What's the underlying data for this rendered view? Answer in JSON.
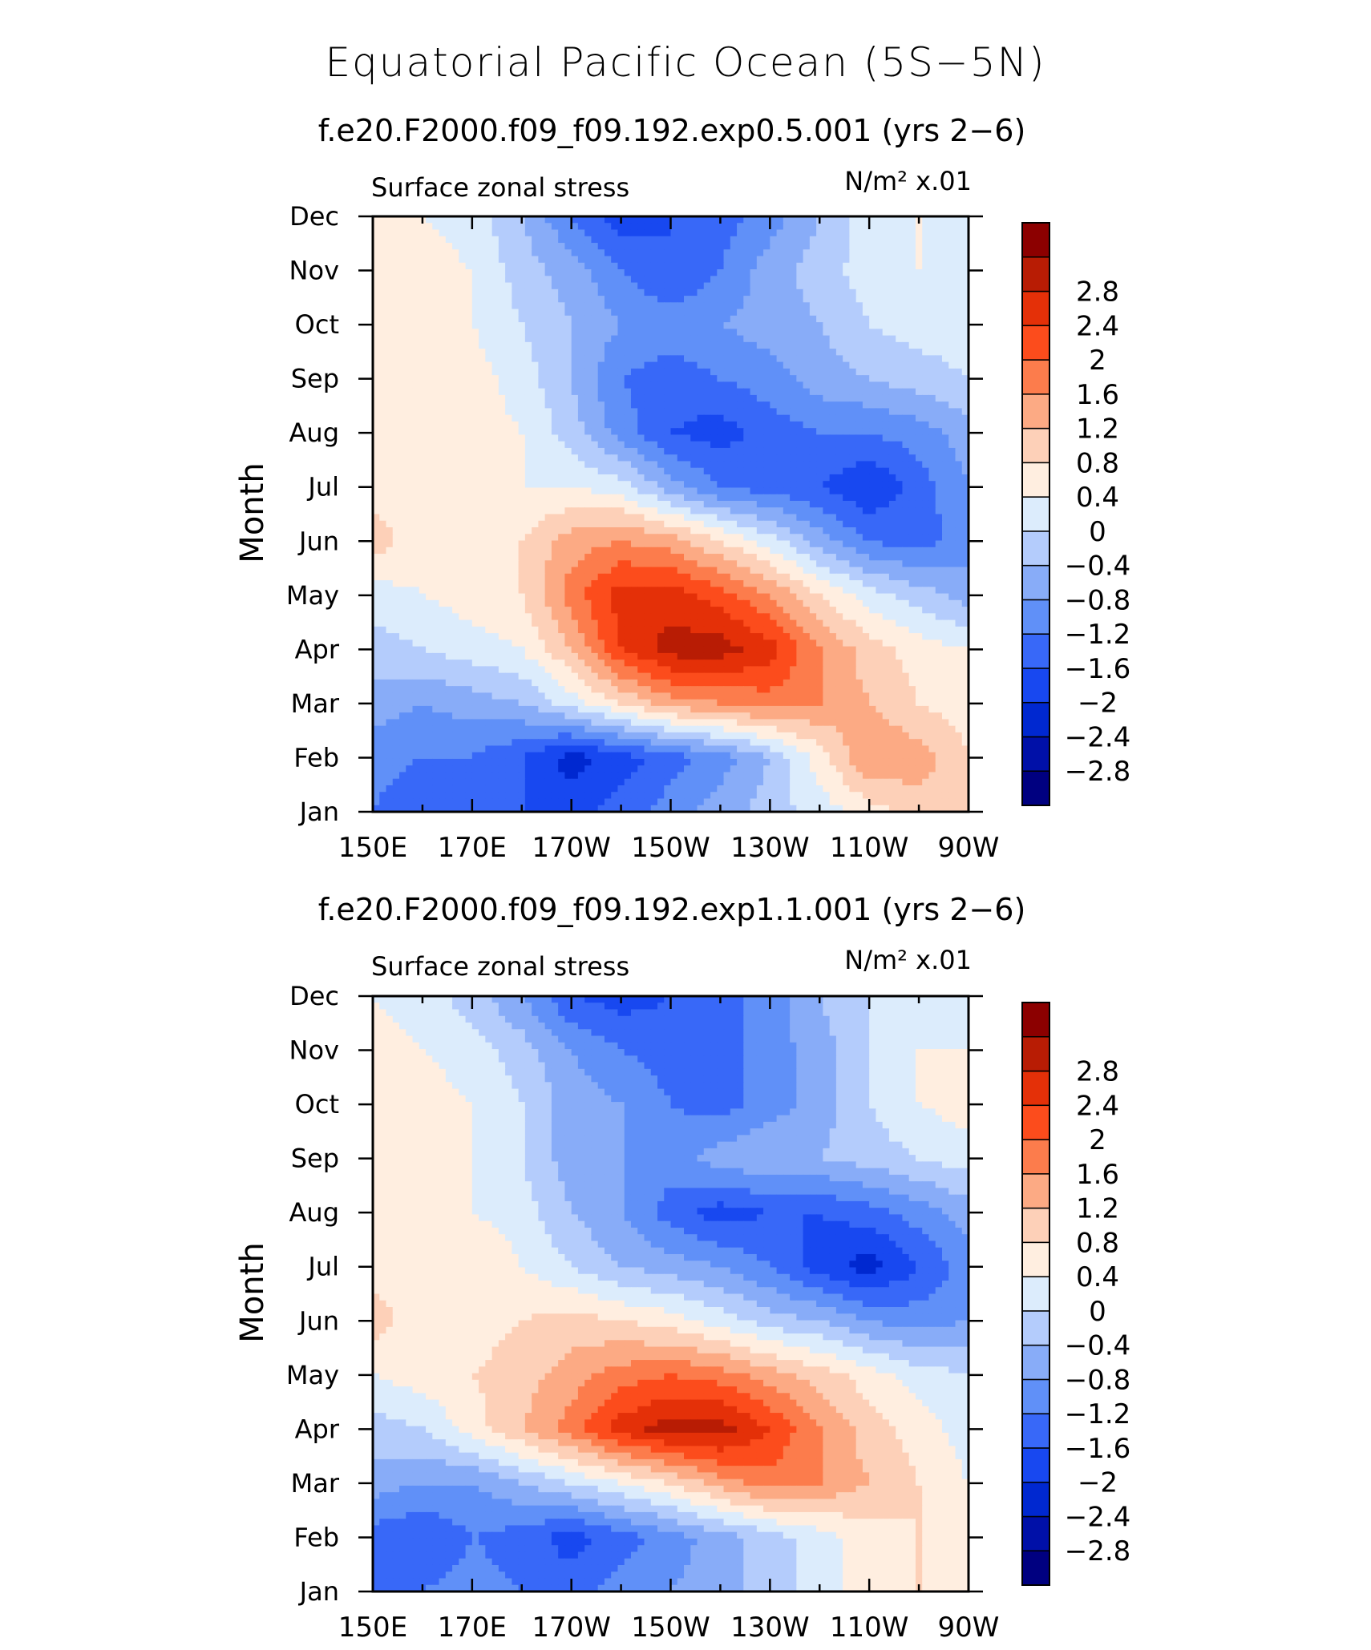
{
  "figure": {
    "title": "Equatorial Pacific Ocean (5S−5N)"
  },
  "palette": {
    "boundaries": [
      -3.2,
      -2.8,
      -2.4,
      -2.0,
      -1.6,
      -1.2,
      -0.8,
      -0.4,
      0,
      0.4,
      0.8,
      1.2,
      1.6,
      2.0,
      2.4,
      2.8,
      3.2
    ],
    "colors": [
      "#000080",
      "#0010a8",
      "#0028d0",
      "#1848f0",
      "#3868f8",
      "#6090f8",
      "#88acf8",
      "#b4ccfc",
      "#dcecfc",
      "#ffeee0",
      "#fdd0b8",
      "#fcaa84",
      "#fc7c4c",
      "#fc4c1c",
      "#e43008",
      "#b81c04",
      "#8c0000"
    ]
  },
  "chart_data": [
    {
      "type": "heatmap",
      "subtitle": "f.e20.F2000.f09_f09.192.exp0.5.001 (yrs 2−6)",
      "left_label": "Surface zonal stress",
      "units_label": "N/m² x.01",
      "ylabel": "Month",
      "x_ticks": [
        "150E",
        "170E",
        "170W",
        "150W",
        "130W",
        "110W",
        "90W"
      ],
      "x_tick_values": [
        150,
        170,
        190,
        210,
        230,
        250,
        270
      ],
      "xlim": [
        150,
        270
      ],
      "y_ticks": [
        "Jan",
        "Feb",
        "Mar",
        "Apr",
        "May",
        "Jun",
        "Jul",
        "Aug",
        "Sep",
        "Oct",
        "Nov",
        "Dec"
      ],
      "ylim": [
        1,
        12
      ],
      "colorbar_labels": [
        "−2.8",
        "−2.4",
        "−2",
        "−1.6",
        "−1.2",
        "−0.8",
        "−0.4",
        "0",
        "0.4",
        "0.8",
        "1.2",
        "1.6",
        "2",
        "2.4",
        "2.8"
      ],
      "contour_levels": [
        -2.8,
        -2.4,
        -2.0,
        -1.6,
        -1.2,
        -0.8,
        -0.4,
        0,
        0.4,
        0.8,
        1.2,
        1.6,
        2.0,
        2.4,
        2.8
      ],
      "x_grid": [
        150,
        160,
        170,
        180,
        190,
        200,
        210,
        220,
        230,
        240,
        250,
        260,
        270
      ],
      "months": [
        1,
        2,
        3,
        4,
        5,
        6,
        7,
        8,
        9,
        10,
        11,
        12
      ],
      "values": [
        [
          -1.2,
          -1.6,
          -1.2,
          -1.6,
          -1.8,
          -1.4,
          -1.0,
          -0.6,
          -0.2,
          0.2,
          0.6,
          1.0,
          1.2
        ],
        [
          -1.0,
          -1.2,
          -1.2,
          -1.6,
          -2.2,
          -1.8,
          -1.4,
          -1.0,
          -0.4,
          0.6,
          1.6,
          1.4,
          0.8
        ],
        [
          -0.6,
          -0.8,
          -0.6,
          -0.4,
          0.2,
          0.8,
          1.4,
          1.6,
          1.8,
          1.6,
          1.2,
          0.8,
          0.6
        ],
        [
          -0.2,
          0.0,
          0.2,
          0.4,
          1.2,
          2.4,
          3.0,
          3.0,
          2.6,
          1.6,
          1.0,
          0.6,
          0.4
        ],
        [
          0.2,
          0.4,
          0.6,
          0.8,
          1.8,
          2.6,
          2.6,
          2.2,
          1.6,
          0.8,
          0.2,
          -0.2,
          -0.6
        ],
        [
          1.0,
          0.6,
          0.6,
          0.8,
          1.4,
          1.6,
          1.4,
          0.8,
          0.2,
          -0.6,
          -1.2,
          -1.4,
          -1.0
        ],
        [
          0.6,
          0.6,
          0.6,
          0.4,
          0.4,
          0.2,
          -0.6,
          -1.2,
          -1.4,
          -1.6,
          -2.0,
          -1.4,
          -0.8
        ],
        [
          0.6,
          0.8,
          0.6,
          0.4,
          -0.2,
          -1.0,
          -1.6,
          -1.8,
          -1.4,
          -1.2,
          -1.2,
          -1.0,
          -0.6
        ],
        [
          0.6,
          0.6,
          0.6,
          0.2,
          -0.4,
          -1.2,
          -1.4,
          -1.2,
          -1.0,
          -0.6,
          -0.4,
          -0.2,
          0.0
        ],
        [
          0.6,
          0.6,
          0.4,
          0.0,
          -0.4,
          -0.8,
          -1.0,
          -0.8,
          -0.6,
          -0.4,
          0.0,
          0.2,
          0.2
        ],
        [
          0.6,
          0.6,
          0.4,
          -0.2,
          -0.6,
          -1.2,
          -1.6,
          -1.2,
          -0.6,
          -0.2,
          0.2,
          0.4,
          0.4
        ],
        [
          0.6,
          0.4,
          0.2,
          -0.4,
          -1.2,
          -1.8,
          -1.6,
          -1.4,
          -1.0,
          -0.4,
          0.2,
          0.4,
          0.2
        ]
      ]
    },
    {
      "type": "heatmap",
      "subtitle": "f.e20.F2000.f09_f09.192.exp1.1.001 (yrs 2−6)",
      "left_label": "Surface zonal stress",
      "units_label": "N/m² x.01",
      "ylabel": "Month",
      "x_ticks": [
        "150E",
        "170E",
        "170W",
        "150W",
        "130W",
        "110W",
        "90W"
      ],
      "x_tick_values": [
        150,
        170,
        190,
        210,
        230,
        250,
        270
      ],
      "xlim": [
        150,
        270
      ],
      "y_ticks": [
        "Jan",
        "Feb",
        "Mar",
        "Apr",
        "May",
        "Jun",
        "Jul",
        "Aug",
        "Sep",
        "Oct",
        "Nov",
        "Dec"
      ],
      "ylim": [
        1,
        12
      ],
      "colorbar_labels": [
        "−2.8",
        "−2.4",
        "−2",
        "−1.6",
        "−1.2",
        "−0.8",
        "−0.4",
        "0",
        "0.4",
        "0.8",
        "1.2",
        "1.6",
        "2",
        "2.4",
        "2.8"
      ],
      "contour_levels": [
        -2.8,
        -2.4,
        -2.0,
        -1.6,
        -1.2,
        -0.8,
        -0.4,
        0,
        0.4,
        0.8,
        1.2,
        1.6,
        2.0,
        2.4,
        2.8
      ],
      "x_grid": [
        150,
        160,
        170,
        180,
        190,
        200,
        210,
        220,
        230,
        240,
        250,
        260,
        270
      ],
      "months": [
        1,
        2,
        3,
        4,
        5,
        6,
        7,
        8,
        9,
        10,
        11,
        12
      ],
      "values": [
        [
          -1.2,
          -1.2,
          -1.0,
          -1.2,
          -1.4,
          -1.0,
          -0.8,
          -0.6,
          -0.2,
          0.2,
          0.6,
          0.8,
          0.8
        ],
        [
          -1.4,
          -1.6,
          -1.2,
          -1.4,
          -1.8,
          -1.4,
          -1.0,
          -0.6,
          -0.2,
          0.2,
          0.6,
          0.8,
          0.6
        ],
        [
          -0.6,
          -0.8,
          -0.8,
          -0.4,
          0.0,
          0.4,
          0.8,
          1.4,
          1.8,
          1.6,
          1.2,
          0.8,
          0.4
        ],
        [
          -0.2,
          0.0,
          0.6,
          1.2,
          1.8,
          2.6,
          3.0,
          3.0,
          2.4,
          1.6,
          1.0,
          0.6,
          0.2
        ],
        [
          0.4,
          0.6,
          0.8,
          1.0,
          1.4,
          1.8,
          2.0,
          1.8,
          1.4,
          1.0,
          0.6,
          0.2,
          0.0
        ],
        [
          1.0,
          0.6,
          0.6,
          0.8,
          1.0,
          0.8,
          0.6,
          0.2,
          -0.2,
          -0.4,
          -0.8,
          -1.0,
          -0.8
        ],
        [
          0.6,
          0.6,
          0.8,
          0.4,
          0.0,
          -0.4,
          -0.6,
          -0.8,
          -1.2,
          -1.8,
          -2.2,
          -1.6,
          -1.0
        ],
        [
          0.6,
          0.6,
          0.4,
          0.2,
          -0.4,
          -0.8,
          -1.4,
          -1.8,
          -1.6,
          -1.6,
          -1.4,
          -1.0,
          -0.6
        ],
        [
          0.6,
          0.6,
          0.4,
          0.0,
          -0.6,
          -0.8,
          -1.0,
          -0.6,
          -0.4,
          -0.4,
          -0.2,
          0.0,
          0.2
        ],
        [
          0.6,
          0.6,
          0.4,
          0.0,
          -0.6,
          -0.8,
          -1.2,
          -1.4,
          -1.0,
          -0.6,
          0.0,
          0.4,
          0.6
        ],
        [
          0.6,
          0.4,
          0.2,
          -0.2,
          -0.8,
          -1.2,
          -1.4,
          -1.4,
          -1.0,
          -0.6,
          0.0,
          0.4,
          0.4
        ],
        [
          0.4,
          0.2,
          -0.2,
          -0.8,
          -1.6,
          -1.8,
          -1.6,
          -1.4,
          -1.0,
          -0.4,
          0.0,
          0.2,
          0.2
        ]
      ]
    }
  ]
}
